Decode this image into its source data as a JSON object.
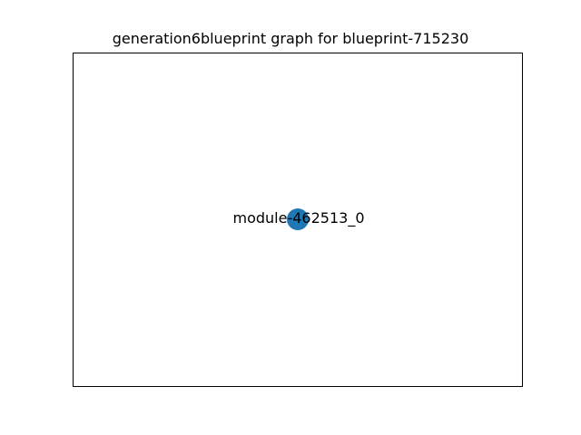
{
  "figure": {
    "title": "generation6blueprint graph for blueprint-715230"
  },
  "graph": {
    "nodes": [
      {
        "label": "module-462513_0",
        "color": "#1f77b4"
      }
    ],
    "edges": []
  }
}
